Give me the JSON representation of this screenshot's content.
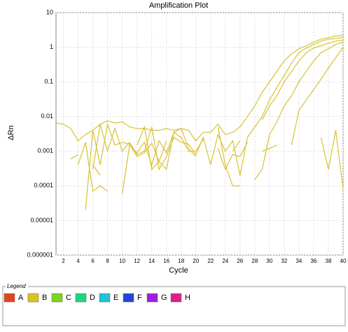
{
  "chart_data": {
    "type": "line",
    "title": "Amplification Plot",
    "x_label": "Cycle",
    "y_label": "ΔRn",
    "log_y": true,
    "grid": true,
    "x": [
      1,
      2,
      3,
      4,
      5,
      6,
      7,
      8,
      9,
      10,
      11,
      12,
      13,
      14,
      15,
      16,
      17,
      18,
      19,
      20,
      21,
      22,
      23,
      24,
      25,
      26,
      27,
      28,
      29,
      30,
      31,
      32,
      33,
      34,
      35,
      36,
      37,
      38,
      39,
      40
    ],
    "xlim": [
      1,
      40
    ],
    "xticks": [
      2,
      4,
      6,
      8,
      10,
      12,
      14,
      16,
      18,
      20,
      22,
      24,
      26,
      28,
      30,
      32,
      34,
      36,
      38,
      40
    ],
    "ylim": [
      1e-06,
      10
    ],
    "yticks": [
      1e-06,
      1e-05,
      0.0001,
      0.001,
      0.01,
      0.1,
      1,
      10
    ],
    "series": [
      {
        "color": "#d8c234",
        "values": [
          0.0065,
          0.006,
          0.0045,
          0.002,
          0.003,
          0.004,
          0.006,
          0.0075,
          0.0065,
          0.007,
          0.005,
          0.0045,
          0.0045,
          0.004,
          0.004,
          0.0045,
          0.004,
          0.0045,
          0.004,
          0.002,
          0.0035,
          0.0035,
          0.006,
          0.003,
          0.0035,
          0.005,
          0.01,
          0.02,
          0.05,
          0.1,
          0.2,
          0.4,
          0.65,
          0.9,
          1.1,
          1.4,
          1.7,
          1.9,
          2.1,
          2.2
        ]
      },
      {
        "color": "#d8c234",
        "values": [
          null,
          null,
          0.0006,
          0.0008,
          null,
          0.0003,
          0.006,
          0.001,
          0.0045,
          0.001,
          0.0018,
          0.0008,
          0.001,
          0.005,
          0.0003,
          0.0007,
          0.0025,
          0.0018,
          0.0016,
          0.0008,
          0.0025,
          0.0004,
          0.003,
          0.001,
          0.002,
          0.0002,
          0.0025,
          0.005,
          0.01,
          0.03,
          0.07,
          0.15,
          0.35,
          0.7,
          0.95,
          1.2,
          1.5,
          1.7,
          1.8,
          1.9
        ]
      },
      {
        "color": "#d8c234",
        "values": [
          null,
          null,
          null,
          0.0004,
          0.0018,
          7e-05,
          0.0001,
          7e-05,
          null,
          6e-05,
          0.0015,
          0.0009,
          0.0018,
          0.0004,
          0.002,
          0.0009,
          0.0035,
          0.0025,
          0.001,
          0.001,
          0.0022,
          null,
          0.0012,
          0.0003,
          0.0008,
          0.0007,
          0.0018,
          null,
          0.008,
          0.02,
          0.04,
          0.1,
          0.2,
          0.4,
          0.7,
          0.95,
          1.1,
          1.3,
          1.5,
          1.6
        ]
      },
      {
        "color": "#d8c234",
        "values": [
          null,
          null,
          null,
          null,
          2e-05,
          0.004,
          0.0004,
          0.006,
          0.0015,
          0.0018,
          0.0016,
          0.0007,
          0.0009,
          0.0017,
          0.0005,
          0.0003,
          0.0035,
          0.0045,
          0.0012,
          0.0007,
          null,
          null,
          0.005,
          0.0004,
          0.0001,
          0.0001,
          null,
          0.00015,
          0.0003,
          0.003,
          0.007,
          0.02,
          0.04,
          0.1,
          0.2,
          0.4,
          0.7,
          0.9,
          1.2,
          1.4
        ]
      },
      {
        "color": "#d8c234",
        "values": [
          null,
          null,
          null,
          null,
          null,
          0.0004,
          0.0002,
          null,
          null,
          null,
          null,
          0.0015,
          0.005,
          0.0003,
          0.0005,
          0.002,
          null,
          null,
          null,
          null,
          null,
          null,
          null,
          null,
          0.001,
          0.002,
          null,
          null,
          0.001,
          0.0012,
          0.0015,
          null,
          0.0015,
          0.015,
          0.03,
          0.06,
          0.12,
          0.25,
          0.5,
          1.0
        ]
      },
      {
        "color": "#d8c234",
        "values": [
          null,
          null,
          null,
          null,
          null,
          null,
          null,
          null,
          null,
          null,
          null,
          null,
          null,
          null,
          null,
          null,
          null,
          null,
          null,
          null,
          null,
          null,
          null,
          null,
          null,
          null,
          null,
          null,
          null,
          null,
          null,
          null,
          null,
          null,
          null,
          null,
          0.0025,
          0.0003,
          0.004,
          8e-05
        ]
      }
    ],
    "legend": {
      "title": "Legend",
      "items": [
        {
          "label": "A",
          "color": "#e0461e"
        },
        {
          "label": "B",
          "color": "#d8c41c"
        },
        {
          "label": "C",
          "color": "#7ed41e"
        },
        {
          "label": "D",
          "color": "#1ed67e"
        },
        {
          "label": "E",
          "color": "#1ec4d8"
        },
        {
          "label": "F",
          "color": "#1e46d8"
        },
        {
          "label": "G",
          "color": "#a01ee0"
        },
        {
          "label": "H",
          "color": "#e01e8a"
        }
      ]
    }
  }
}
